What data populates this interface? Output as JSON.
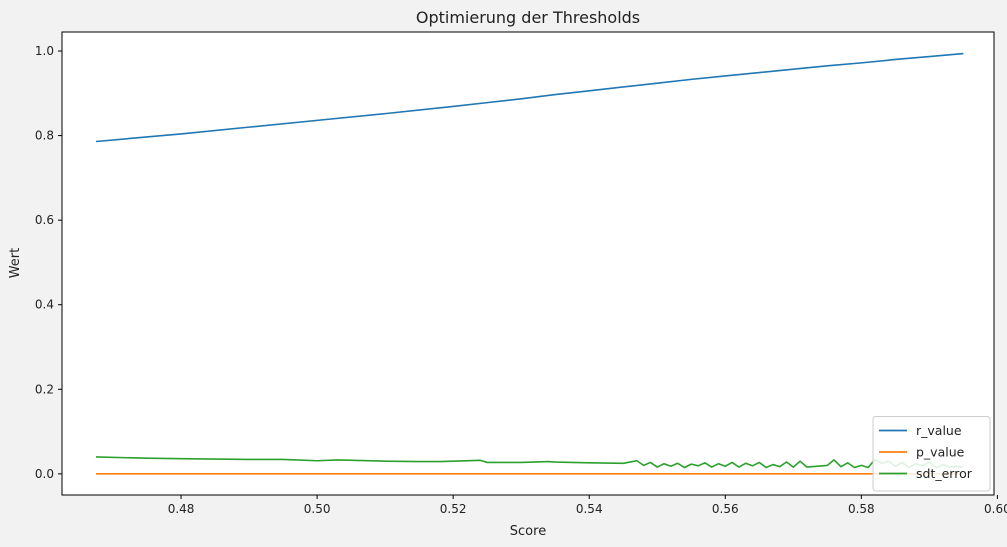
{
  "chart_data": {
    "type": "line",
    "title": "Optimierung der Thresholds",
    "xlabel": "Score",
    "ylabel": "Wert",
    "xlim": [
      0.4625,
      0.5995
    ],
    "ylim": [
      -0.05,
      1.045
    ],
    "xticks": [
      0.48,
      0.5,
      0.52,
      0.54,
      0.56,
      0.58,
      0.6
    ],
    "xtick_labels": [
      "0.48",
      "0.50",
      "0.52",
      "0.54",
      "0.56",
      "0.58",
      "0.60"
    ],
    "yticks": [
      0.0,
      0.2,
      0.4,
      0.6,
      0.8,
      1.0
    ],
    "ytick_labels": [
      "0.0",
      "0.2",
      "0.4",
      "0.6",
      "0.8",
      "1.0"
    ],
    "grid": false,
    "legend": {
      "position": "bottom-right"
    },
    "series": [
      {
        "name": "r_value",
        "color": "#1f77b4",
        "x": [
          0.4675,
          0.48,
          0.49,
          0.5,
          0.51,
          0.52,
          0.525,
          0.53,
          0.535,
          0.54,
          0.545,
          0.55,
          0.555,
          0.56,
          0.565,
          0.57,
          0.575,
          0.58,
          0.585,
          0.59,
          0.595
        ],
        "y": [
          0.786,
          0.804,
          0.82,
          0.836,
          0.852,
          0.869,
          0.878,
          0.887,
          0.897,
          0.906,
          0.915,
          0.924,
          0.933,
          0.941,
          0.949,
          0.957,
          0.965,
          0.972,
          0.98,
          0.987,
          0.994
        ]
      },
      {
        "name": "p_value",
        "color": "#ff7f0e",
        "x": [
          0.4675,
          0.595
        ],
        "y": [
          0.0,
          0.0
        ]
      },
      {
        "name": "sdt_error",
        "color": "#2ca02c",
        "x": [
          0.4675,
          0.475,
          0.48,
          0.49,
          0.495,
          0.5,
          0.503,
          0.51,
          0.515,
          0.518,
          0.52,
          0.524,
          0.525,
          0.53,
          0.534,
          0.535,
          0.54,
          0.545,
          0.547,
          0.548,
          0.549,
          0.55,
          0.551,
          0.552,
          0.553,
          0.554,
          0.555,
          0.556,
          0.557,
          0.558,
          0.559,
          0.56,
          0.561,
          0.562,
          0.563,
          0.564,
          0.565,
          0.566,
          0.567,
          0.568,
          0.569,
          0.57,
          0.571,
          0.572,
          0.575,
          0.576,
          0.577,
          0.578,
          0.579,
          0.58,
          0.581,
          0.582,
          0.583,
          0.584,
          0.585,
          0.586,
          0.587,
          0.588,
          0.589,
          0.59,
          0.591,
          0.592,
          0.593,
          0.594,
          0.595
        ],
        "y": [
          0.04,
          0.037,
          0.036,
          0.034,
          0.034,
          0.031,
          0.033,
          0.03,
          0.029,
          0.029,
          0.03,
          0.032,
          0.027,
          0.027,
          0.029,
          0.028,
          0.026,
          0.025,
          0.031,
          0.02,
          0.027,
          0.016,
          0.024,
          0.018,
          0.025,
          0.015,
          0.023,
          0.019,
          0.026,
          0.016,
          0.024,
          0.018,
          0.027,
          0.016,
          0.025,
          0.019,
          0.027,
          0.015,
          0.022,
          0.017,
          0.028,
          0.016,
          0.03,
          0.016,
          0.02,
          0.033,
          0.017,
          0.026,
          0.015,
          0.02,
          0.015,
          0.034,
          0.025,
          0.03,
          0.018,
          0.027,
          0.015,
          0.024,
          0.019,
          0.028,
          0.014,
          0.022,
          0.016,
          0.018,
          0.015
        ]
      }
    ]
  }
}
